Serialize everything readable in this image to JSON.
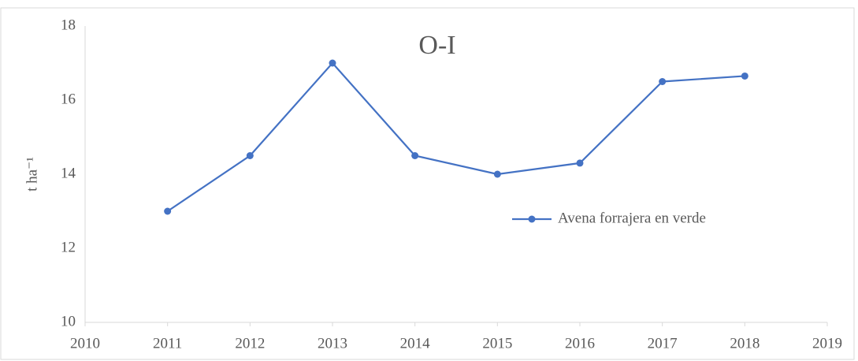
{
  "chart_data": {
    "type": "line",
    "title": "O-I",
    "y_label": "t ha⁻¹",
    "x": [
      2011,
      2012,
      2013,
      2014,
      2015,
      2016,
      2017,
      2018
    ],
    "series": [
      {
        "name": "Avena forrajera en verde",
        "color": "#4472c4",
        "values": [
          13,
          14.5,
          17,
          14.5,
          14,
          14.3,
          16.5,
          16.65
        ]
      }
    ],
    "xlim": [
      2010,
      2019
    ],
    "xticks": [
      2010,
      2011,
      2012,
      2013,
      2014,
      2015,
      2016,
      2017,
      2018,
      2019
    ],
    "ylim": [
      10,
      18
    ],
    "yticks": [
      10,
      12,
      14,
      16,
      18
    ],
    "grid": false,
    "legend": "right"
  }
}
